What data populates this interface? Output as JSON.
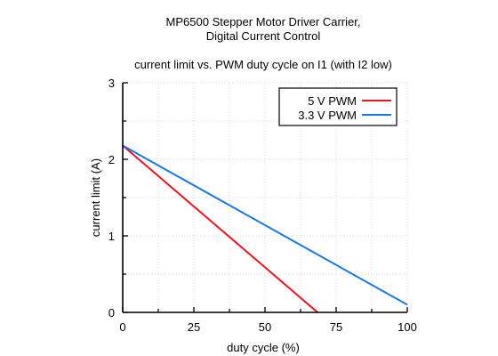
{
  "chart_data": {
    "type": "line",
    "title": "MP6500 Stepper Motor Driver Carrier,",
    "title_line2": "Digital Current Control",
    "subtitle": "current limit vs. PWM duty cycle on I1 (with I2 low)",
    "xlabel": "duty cycle (%)",
    "ylabel": "current limit (A)",
    "xlim": [
      0,
      100
    ],
    "ylim": [
      0,
      3
    ],
    "xticks": [
      0,
      25,
      50,
      75,
      100
    ],
    "yticks": [
      0,
      1,
      2,
      3
    ],
    "xtick_labels": [
      "0",
      "25",
      "50",
      "75",
      "100"
    ],
    "ytick_labels": [
      "0",
      "1",
      "2",
      "3"
    ],
    "grid": true,
    "legend_position": "top-right",
    "series": [
      {
        "name": "5 V PWM",
        "color": "#e8141c",
        "x": [
          0,
          68.5
        ],
        "y": [
          2.18,
          0
        ]
      },
      {
        "name": "3.3 V PWM",
        "color": "#1a78e0",
        "x": [
          0,
          100
        ],
        "y": [
          2.18,
          0.1
        ]
      }
    ]
  }
}
